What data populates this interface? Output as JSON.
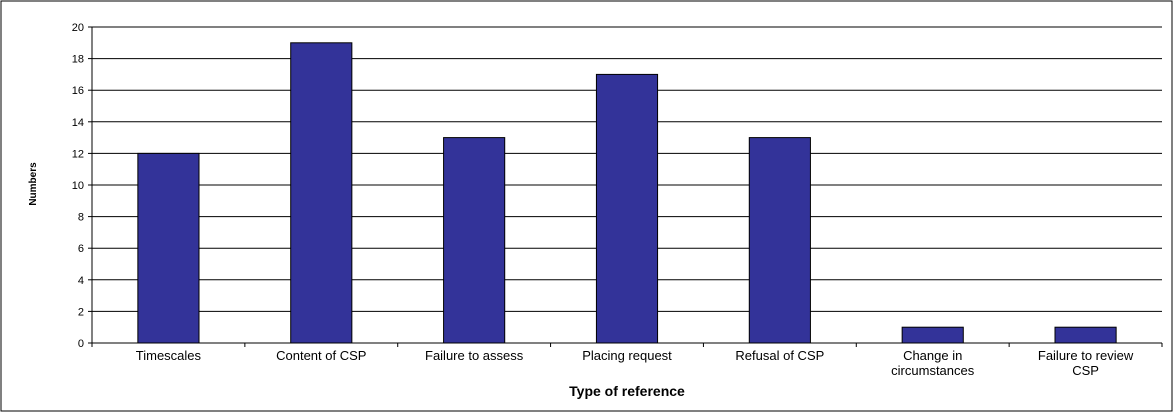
{
  "chart_data": {
    "type": "bar",
    "title": "",
    "xlabel": "Type of reference",
    "ylabel": "Numbers",
    "ylim": [
      0,
      20
    ],
    "yticks": [
      0,
      2,
      4,
      6,
      8,
      10,
      12,
      14,
      16,
      18,
      20
    ],
    "grid": true,
    "legend": "none",
    "categories": [
      [
        "Timescales"
      ],
      [
        "Content of CSP"
      ],
      [
        "Failure to assess"
      ],
      [
        "Placing request"
      ],
      [
        "Refusal of CSP"
      ],
      [
        "Change in",
        "circumstances"
      ],
      [
        "Failure to review",
        "CSP"
      ]
    ],
    "values": [
      12,
      19,
      13,
      17,
      13,
      1,
      1
    ],
    "colors": {
      "bar_fill": "#333399",
      "bar_stroke": "#000000",
      "gridline": "#000000",
      "frame": "#000000",
      "background": "#ffffff"
    }
  }
}
